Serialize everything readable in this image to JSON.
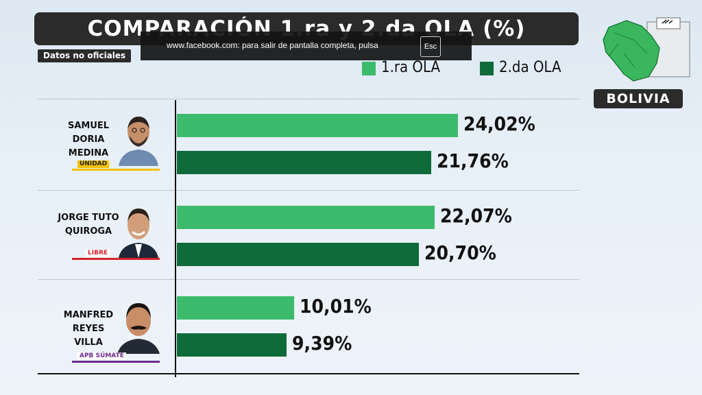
{
  "overlay": {
    "fullscreen_notice": "www.facebook.com: para salir de pantalla completa, pulsa",
    "esc_key": "Esc"
  },
  "header": {
    "title": "COMPARACIÓN 1.ra y 2.da OLA (%)",
    "note": "Datos no oficiales"
  },
  "badge": {
    "country": "BOLIVIA"
  },
  "colors": {
    "first_wave": "#3dbb6c",
    "second_wave": "#0f6b3a",
    "dark": "#2b2b2b"
  },
  "chart_data": {
    "type": "bar",
    "orientation": "horizontal",
    "title": "COMPARACIÓN 1.ra y 2.da OLA (%)",
    "categories": [
      "SAMUEL DORIA MEDINA",
      "JORGE TUTO QUIROGA",
      "MANFRED REYES VILLA"
    ],
    "series": [
      {
        "name": "1.ra OLA",
        "values": [
          24.02,
          22.07,
          10.01
        ],
        "labels": [
          "24,02%",
          "22,07%",
          "10,01%"
        ],
        "color": "#3dbb6c"
      },
      {
        "name": "2.da OLA",
        "values": [
          21.76,
          20.7,
          9.39
        ],
        "labels": [
          "21,76%",
          "20,70%",
          "9,39%"
        ],
        "color": "#0f6b3a"
      }
    ],
    "legend": "top-right",
    "candidates": [
      {
        "line1": "SAMUEL",
        "line2": "DORIA MEDINA",
        "party": "UNIDAD",
        "party_color": "#f2c200",
        "icon": "person-portrait-icon"
      },
      {
        "line1": "JORGE TUTO",
        "line2": "QUIROGA",
        "party": "LIBRE",
        "party_color": "#d6232a",
        "icon": "person-portrait-icon"
      },
      {
        "line1": "MANFRED",
        "line2": "REYES VILLA",
        "party": "APB SÚMATE",
        "party_color": "#6a2c8e",
        "icon": "person-portrait-icon"
      }
    ]
  }
}
